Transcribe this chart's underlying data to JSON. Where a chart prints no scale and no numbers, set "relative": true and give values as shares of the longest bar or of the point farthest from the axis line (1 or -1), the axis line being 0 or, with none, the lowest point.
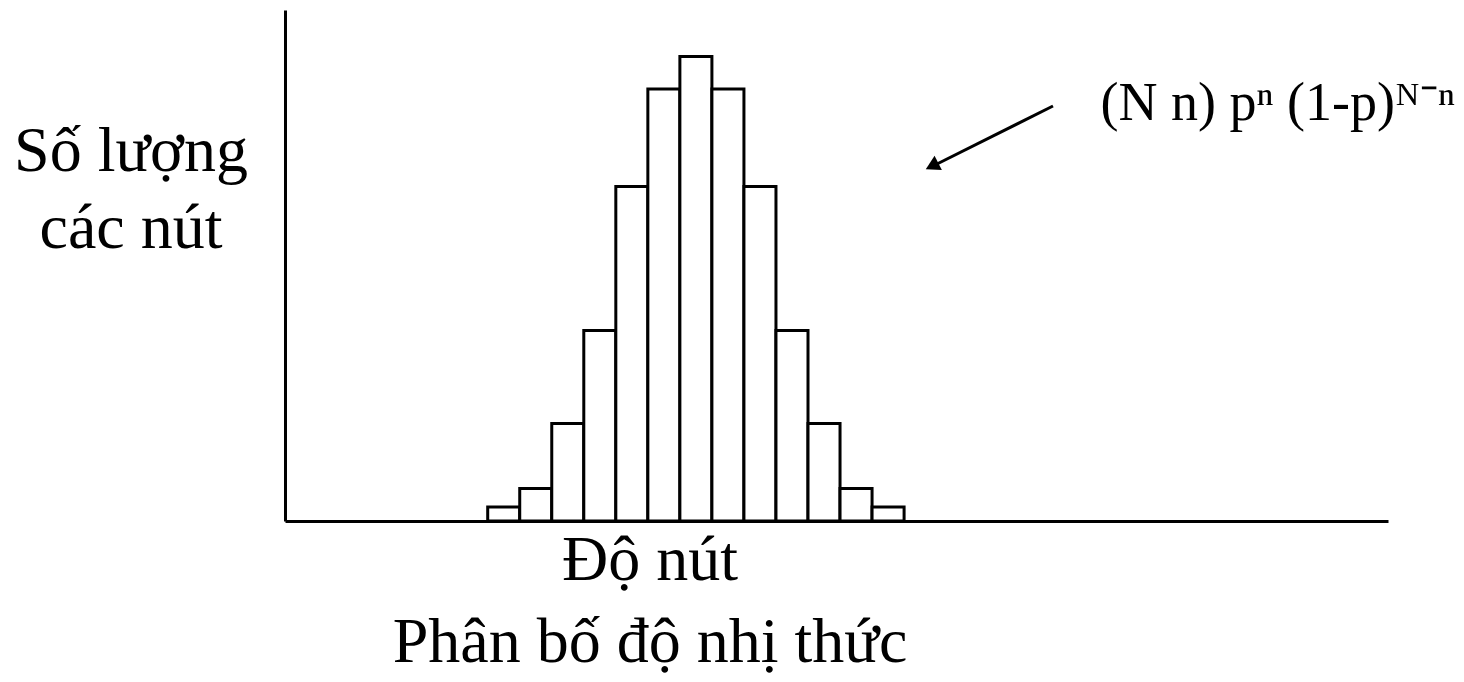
{
  "chart_data": {
    "type": "bar",
    "title": "Phân bố độ nhị thức",
    "xlabel": "Độ nút",
    "ylabel": "Số lượng\ncác nút",
    "annotations": [
      "(N n) pⁿ (1-p)ᴺ⁻ⁿ"
    ],
    "categories": [
      null,
      null,
      null,
      null,
      null,
      null,
      null,
      null,
      null,
      null,
      null,
      null,
      null
    ],
    "values": [
      0.03,
      0.07,
      0.21,
      0.41,
      0.72,
      0.93,
      1,
      0.93,
      0.72,
      0.41,
      0.21,
      0.07,
      0.03
    ],
    "color": "#ffffff",
    "relative": true,
    "tick_labels": false
  }
}
